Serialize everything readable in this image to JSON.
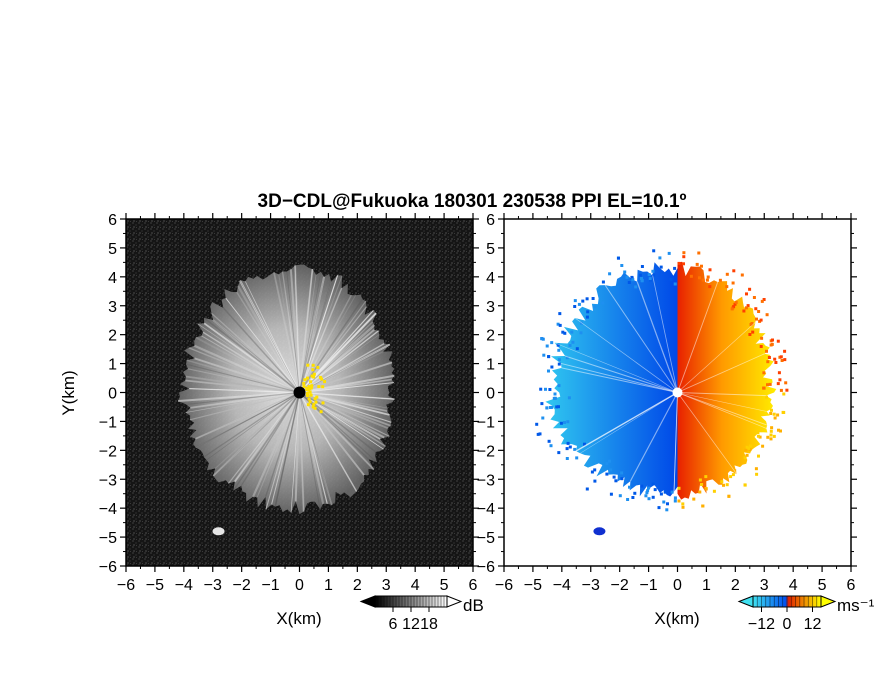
{
  "figure": {
    "title": "3D−CDL@Fukuoka 180301 230538 PPI EL=10.1º"
  },
  "chart_data": [
    {
      "type": "heatmap",
      "quantity": "reflectivity",
      "xlabel": "X(km)",
      "ylabel": "Y(km)",
      "xlim": [
        -6,
        6
      ],
      "ylim": [
        -6,
        6
      ],
      "xticks": [
        "−6",
        "−5",
        "−4",
        "−3",
        "−2",
        "−1",
        "0",
        "1",
        "2",
        "3",
        "4",
        "5",
        "6"
      ],
      "yticks": [
        "−6",
        "−5",
        "−4",
        "−3",
        "−2",
        "−1",
        "0",
        "1",
        "2",
        "3",
        "4",
        "5",
        "6"
      ],
      "colormap": [
        "#000000",
        "#ffffff"
      ],
      "colorbar": {
        "unit": "dB",
        "ticks": [
          "6",
          "12",
          "18"
        ],
        "range": [
          0,
          24
        ]
      },
      "echo_extent_km": {
        "east": 3.2,
        "north": 4.3,
        "west": 4.0,
        "south": 4.0
      },
      "radar_site": [
        0,
        0
      ],
      "isolated_echo": [
        -2.8,
        -4.8
      ],
      "highlight_color": "#ffe000"
    },
    {
      "type": "heatmap",
      "quantity": "doppler velocity",
      "xlabel": "X(km)",
      "xlim": [
        -6,
        6
      ],
      "ylim": [
        -6,
        6
      ],
      "xticks": [
        "−6",
        "−5",
        "−4",
        "−3",
        "−2",
        "−1",
        "0",
        "1",
        "2",
        "3",
        "4",
        "5",
        "6"
      ],
      "yticks": [
        "−6",
        "−5",
        "−4",
        "−3",
        "−2",
        "−1",
        "0",
        "1",
        "2",
        "3",
        "4",
        "5",
        "6"
      ],
      "colormap": [
        "#40e0f0",
        "#0060f0",
        "#e02000",
        "#ffff00"
      ],
      "colorbar": {
        "unit": "ms⁻¹",
        "ticks": [
          "−12",
          "0",
          "12"
        ],
        "range": [
          -16,
          16
        ]
      },
      "echo_extent_km": {
        "east": 3.2,
        "north": 4.3,
        "west": 4.3,
        "south": 3.5
      },
      "radar_site": [
        0,
        0
      ],
      "isolated_echo": [
        -2.7,
        -4.8
      ]
    }
  ]
}
